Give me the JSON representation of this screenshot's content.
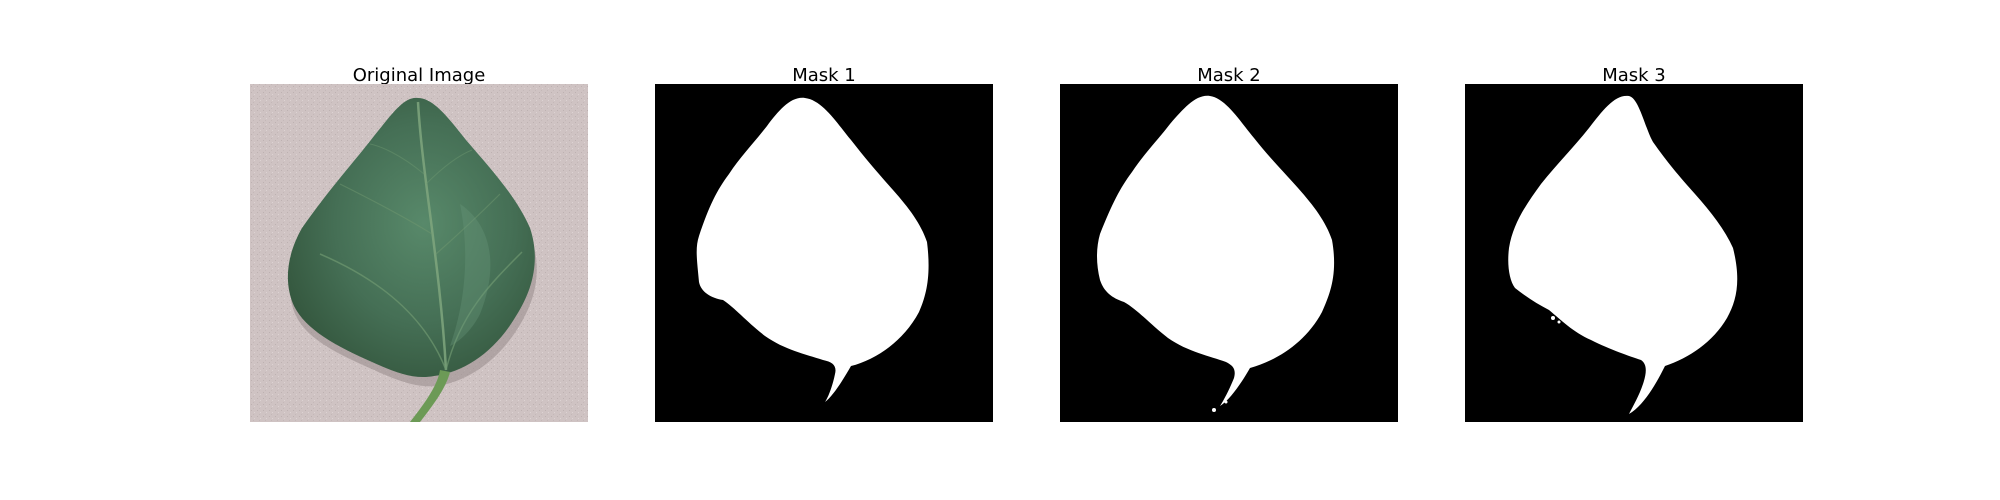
{
  "figure": {
    "panels": [
      {
        "title": "Original Image",
        "kind": "photo"
      },
      {
        "title": "Mask 1",
        "kind": "mask"
      },
      {
        "title": "Mask 2",
        "kind": "mask"
      },
      {
        "title": "Mask 3",
        "kind": "mask"
      }
    ]
  },
  "colors": {
    "background_photo": "#cfc3c3",
    "leaf_dark": "#3e6a4f",
    "leaf_mid": "#4f7d5f",
    "leaf_vein": "#7fa67e",
    "stem": "#6c9a56",
    "mask_bg": "#000000",
    "mask_fg": "#ffffff"
  }
}
